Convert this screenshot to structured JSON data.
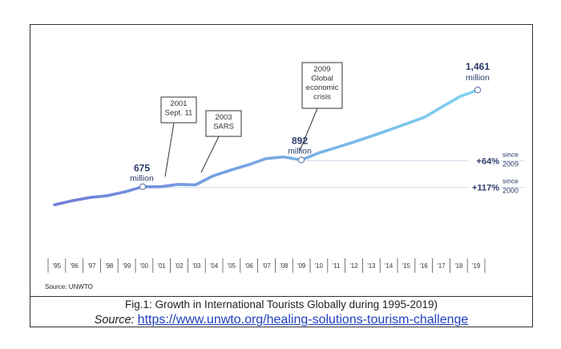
{
  "chart_data": {
    "type": "line",
    "title": "",
    "xlabel": "",
    "ylabel": "",
    "categories": [
      "'95",
      "'96",
      "'97",
      "'98",
      "'99",
      "'00",
      "'01",
      "'02",
      "'03",
      "'04",
      "'05",
      "'06",
      "'07",
      "'08",
      "'09",
      "'10",
      "'11",
      "'12",
      "'13",
      "'14",
      "'15",
      "'16",
      "'17",
      "'18",
      "'19"
    ],
    "series": [
      {
        "values": [
          528,
          561,
          587,
          602,
          633,
          675,
          674,
          694,
          690,
          763,
          810,
          853,
          903,
          917,
          892,
          950,
          994,
          1039,
          1087,
          1137,
          1189,
          1240,
          1326,
          1408,
          1461
        ]
      }
    ],
    "ylim": [
      450,
      1550
    ],
    "grid": false,
    "colors": {
      "line_start": "#6f7fd9",
      "line_end": "#7fd3ef",
      "text": "#2c3a6b",
      "muted_line": "#c9d9e6"
    },
    "point_labels": [
      {
        "year_index": 5,
        "value_text": "675",
        "unit_text": "million"
      },
      {
        "year_index": 14,
        "value_text": "892",
        "unit_text": "million"
      },
      {
        "year_index": 24,
        "value_text": "1,461",
        "unit_text": "million"
      }
    ],
    "annotations": [
      {
        "year_index": 6,
        "lines": [
          "2001",
          "Sept. 11"
        ]
      },
      {
        "year_index": 8,
        "lines": [
          "2003",
          "SARS"
        ]
      },
      {
        "year_index": 14,
        "lines": [
          "2009",
          "Global",
          "economic",
          "crisis"
        ]
      }
    ],
    "growth_labels": [
      {
        "value_text": "+64%",
        "note_lines": [
          "since",
          "2009"
        ]
      },
      {
        "value_text": "+117%",
        "note_lines": [
          "since",
          "2000"
        ]
      }
    ]
  },
  "source_label": "Source: UNWTO",
  "caption": {
    "title": "Fig.1: Growth in International Tourists Globally during 1995-2019)",
    "source_prefix": "Source:",
    "source_link": "https://www.unwto.org/healing-solutions-tourism-challenge"
  }
}
